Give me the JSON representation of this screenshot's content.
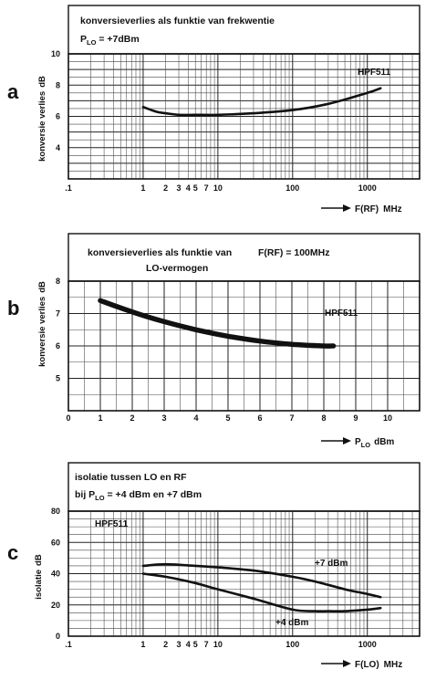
{
  "chart_data": [
    {
      "letter": "a",
      "type": "line",
      "title": "konversieverlies als funktie van frekwentie",
      "subtitle_prefix": "P",
      "subtitle_sub": "LO",
      "subtitle_suffix": " = +7dBm",
      "ylabel": "konversie verlies",
      "yunit": "dB",
      "xlabel_prefix": "F(RF)",
      "xunit": "MHz",
      "xscale": "log",
      "xlim": [
        0.1,
        5000
      ],
      "ylim": [
        2,
        10
      ],
      "yticks": [
        {
          "v": 4,
          "label": "4"
        },
        {
          "v": 6,
          "label": "6"
        },
        {
          "v": 8,
          "label": "8"
        },
        {
          "v": 10,
          "label": "10"
        }
      ],
      "xticks": [
        {
          "v": 0.1,
          "label": ".1"
        },
        {
          "v": 1,
          "label": "1"
        },
        {
          "v": 2,
          "label": "2"
        },
        {
          "v": 3,
          "label": "3"
        },
        {
          "v": 4,
          "label": "4"
        },
        {
          "v": 5,
          "label": "5"
        },
        {
          "v": 7,
          "label": "7"
        },
        {
          "v": 10,
          "label": "10"
        },
        {
          "v": 100,
          "label": "100"
        },
        {
          "v": 1000,
          "label": "1000"
        }
      ],
      "series": [
        {
          "name": "HPF511",
          "x": [
            1,
            1.5,
            2,
            3,
            5,
            10,
            30,
            100,
            300,
            1000,
            1500
          ],
          "y": [
            6.6,
            6.3,
            6.2,
            6.1,
            6.1,
            6.1,
            6.2,
            6.4,
            6.8,
            7.5,
            7.8
          ]
        }
      ]
    },
    {
      "letter": "b",
      "type": "line",
      "title": "konversieverlies als funktie van",
      "title2": "LO-vermogen",
      "title_right": "F(RF) = 100MHz",
      "ylabel": "konversie verlies",
      "yunit": "dB",
      "xlabel_prefix": "P",
      "xlabel_sub": "LO",
      "xunit": "dBm",
      "xscale": "linear",
      "xlim": [
        0,
        11
      ],
      "ylim": [
        4,
        8
      ],
      "yticks": [
        {
          "v": 5,
          "label": "5"
        },
        {
          "v": 6,
          "label": "6"
        },
        {
          "v": 7,
          "label": "7"
        },
        {
          "v": 8,
          "label": "8"
        }
      ],
      "xticks": [
        {
          "v": 0,
          "label": "0"
        },
        {
          "v": 1,
          "label": "1"
        },
        {
          "v": 2,
          "label": "2"
        },
        {
          "v": 3,
          "label": "3"
        },
        {
          "v": 4,
          "label": "4"
        },
        {
          "v": 5,
          "label": "5"
        },
        {
          "v": 6,
          "label": "6"
        },
        {
          "v": 7,
          "label": "7"
        },
        {
          "v": 8,
          "label": "8"
        },
        {
          "v": 9,
          "label": "9"
        },
        {
          "v": 10,
          "label": "10"
        }
      ],
      "series": [
        {
          "name": "HPF511",
          "x": [
            1,
            2,
            3,
            4,
            5,
            6,
            7,
            8,
            8.3
          ],
          "y": [
            7.4,
            7.05,
            6.75,
            6.5,
            6.3,
            6.15,
            6.05,
            6.0,
            6.0
          ]
        }
      ]
    },
    {
      "letter": "c",
      "type": "line",
      "title": "isolatie tussen LO en RF",
      "subtitle_prefix": "bij P",
      "subtitle_sub": "LO",
      "subtitle_suffix": " = +4 dBm  en  +7 dBm",
      "ylabel": "isolatie",
      "yunit": "dB",
      "xlabel_prefix": "F(LO)",
      "xunit": "MHz",
      "xscale": "log",
      "xlim": [
        0.1,
        5000
      ],
      "ylim": [
        0,
        80
      ],
      "chart_label": "HPF511",
      "yticks": [
        {
          "v": 0,
          "label": "0"
        },
        {
          "v": 20,
          "label": "20"
        },
        {
          "v": 40,
          "label": "40"
        },
        {
          "v": 60,
          "label": "60"
        },
        {
          "v": 80,
          "label": "80"
        }
      ],
      "xticks": [
        {
          "v": 0.1,
          "label": ".1"
        },
        {
          "v": 1,
          "label": "1"
        },
        {
          "v": 2,
          "label": "2"
        },
        {
          "v": 3,
          "label": "3"
        },
        {
          "v": 4,
          "label": "4"
        },
        {
          "v": 5,
          "label": "5"
        },
        {
          "v": 7,
          "label": "7"
        },
        {
          "v": 10,
          "label": "10"
        },
        {
          "v": 100,
          "label": "100"
        },
        {
          "v": 1000,
          "label": "1000"
        }
      ],
      "series": [
        {
          "name": "+7 dBm",
          "x": [
            1,
            2,
            5,
            10,
            30,
            100,
            200,
            500,
            1000,
            1500
          ],
          "y": [
            45,
            46,
            45,
            44,
            42,
            38,
            35,
            30,
            27,
            25
          ]
        },
        {
          "name": "+4 dBm",
          "x": [
            1,
            2,
            5,
            10,
            30,
            100,
            200,
            300,
            500,
            1000,
            1500
          ],
          "y": [
            40,
            38,
            34,
            30,
            24,
            17,
            16,
            16,
            16,
            17,
            18
          ]
        }
      ]
    }
  ]
}
